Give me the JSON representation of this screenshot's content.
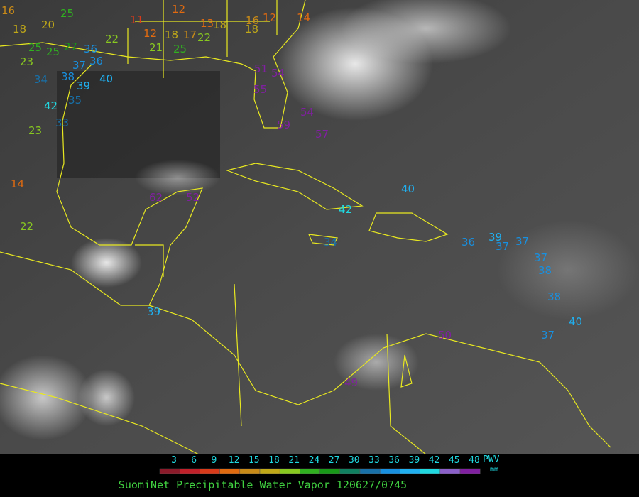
{
  "stations": [
    16,
    18,
    20,
    25,
    11,
    12,
    13,
    16,
    12,
    14,
    18,
    18,
    12,
    18,
    17,
    22,
    25,
    25,
    27,
    36,
    22,
    21,
    25,
    23,
    38,
    37,
    36,
    34,
    39,
    40,
    42,
    35,
    33,
    23,
    14,
    22,
    62,
    52,
    51,
    54,
    55,
    54,
    57,
    59,
    40,
    42,
    34,
    39,
    36,
    39,
    37,
    37,
    37,
    38,
    38,
    40,
    37,
    50,
    49
  ],
  "legend": {
    "ticks": [
      3,
      6,
      9,
      12,
      15,
      18,
      21,
      24,
      27,
      30,
      33,
      36,
      39,
      42,
      45,
      48
    ],
    "colors": [
      "#8b1a2a",
      "#c0202a",
      "#d83a1a",
      "#e06a10",
      "#c88a18",
      "#c0a818",
      "#88c820",
      "#30b020",
      "#189818",
      "#108060",
      "#1870a8",
      "#1890e0",
      "#20b0f0",
      "#20d8e0",
      "#8a60c8",
      "#8020a0"
    ],
    "unit": "PWV",
    "unit_sub": "mm"
  },
  "caption": "SuomiNet Precipitable Water Vapor 120627/0745"
}
